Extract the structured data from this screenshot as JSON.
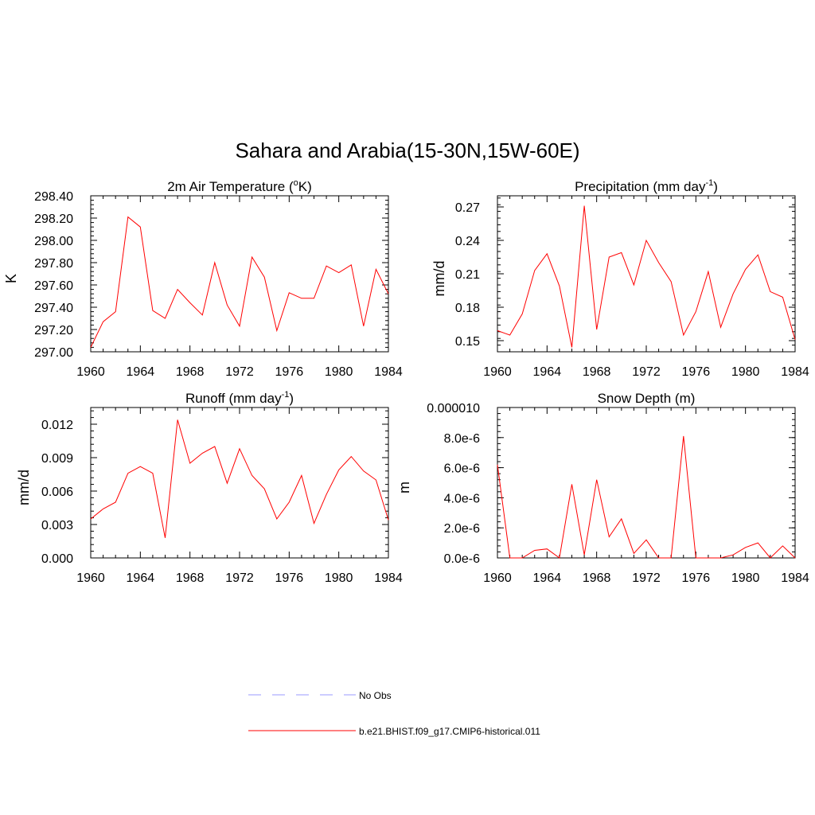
{
  "title": "Sahara and Arabia(15-30N,15W-60E)",
  "chart_data": [
    {
      "type": "line",
      "title": "2m Air Temperature (",
      "title_sup": "o",
      "title_end": "K)",
      "ylabel": "K",
      "xlim": [
        1960,
        1984
      ],
      "ylim": [
        297.0,
        298.4
      ],
      "xticks": [
        "1960",
        "1964",
        "1968",
        "1972",
        "1976",
        "1980",
        "1984"
      ],
      "yticks": [
        "297.00",
        "297.20",
        "297.40",
        "297.60",
        "297.80",
        "298.00",
        "298.20",
        "298.40"
      ],
      "ytick_values": [
        297.0,
        297.2,
        297.4,
        297.6,
        297.8,
        298.0,
        298.2,
        298.4
      ],
      "x": [
        1960,
        1961,
        1962,
        1963,
        1964,
        1965,
        1966,
        1967,
        1968,
        1969,
        1970,
        1971,
        1972,
        1973,
        1974,
        1975,
        1976,
        1977,
        1978,
        1979,
        1980,
        1981,
        1982,
        1983,
        1984
      ],
      "series": [
        {
          "values": [
            297.04,
            297.27,
            297.36,
            298.21,
            298.12,
            297.37,
            297.3,
            297.56,
            297.44,
            297.33,
            297.8,
            297.42,
            297.23,
            297.85,
            297.67,
            297.19,
            297.53,
            297.48,
            297.48,
            297.77,
            297.71,
            297.78,
            297.23,
            297.74,
            297.52
          ],
          "color": "#ff0000"
        }
      ]
    },
    {
      "type": "line",
      "title": "Precipitation (mm day",
      "title_sup": "-1",
      "title_end": ")",
      "ylabel": "mm/d",
      "xlim": [
        1960,
        1984
      ],
      "ylim": [
        0.14,
        0.28
      ],
      "xticks": [
        "1960",
        "1964",
        "1968",
        "1972",
        "1976",
        "1980",
        "1984"
      ],
      "yticks": [
        "0.15",
        "0.18",
        "0.21",
        "0.24",
        "0.27"
      ],
      "ytick_values": [
        0.15,
        0.18,
        0.21,
        0.24,
        0.27
      ],
      "x": [
        1960,
        1961,
        1962,
        1963,
        1964,
        1965,
        1966,
        1967,
        1968,
        1969,
        1970,
        1971,
        1972,
        1973,
        1974,
        1975,
        1976,
        1977,
        1978,
        1979,
        1980,
        1981,
        1982,
        1983,
        1984
      ],
      "series": [
        {
          "values": [
            0.159,
            0.155,
            0.174,
            0.213,
            0.228,
            0.199,
            0.144,
            0.271,
            0.16,
            0.225,
            0.229,
            0.2,
            0.24,
            0.22,
            0.203,
            0.155,
            0.176,
            0.212,
            0.162,
            0.192,
            0.214,
            0.227,
            0.194,
            0.189,
            0.151
          ],
          "color": "#ff0000"
        }
      ]
    },
    {
      "type": "line",
      "title": "Runoff (mm day",
      "title_sup": "-1",
      "title_end": ")",
      "ylabel": "mm/d",
      "xlim": [
        1960,
        1984
      ],
      "ylim": [
        0.0,
        0.0135
      ],
      "xticks": [
        "1960",
        "1964",
        "1968",
        "1972",
        "1976",
        "1980",
        "1984"
      ],
      "yticks": [
        "0.000",
        "0.003",
        "0.006",
        "0.009",
        "0.012"
      ],
      "ytick_values": [
        0.0,
        0.003,
        0.006,
        0.009,
        0.012
      ],
      "x": [
        1960,
        1961,
        1962,
        1963,
        1964,
        1965,
        1966,
        1967,
        1968,
        1969,
        1970,
        1971,
        1972,
        1973,
        1974,
        1975,
        1976,
        1977,
        1978,
        1979,
        1980,
        1981,
        1982,
        1983,
        1984
      ],
      "series": [
        {
          "values": [
            0.0035,
            0.0044,
            0.005,
            0.0076,
            0.0082,
            0.0076,
            0.0018,
            0.0124,
            0.0085,
            0.0094,
            0.01,
            0.0067,
            0.0098,
            0.0074,
            0.0062,
            0.0035,
            0.005,
            0.0074,
            0.0031,
            0.0057,
            0.0079,
            0.0091,
            0.0078,
            0.007,
            0.0034
          ],
          "color": "#ff0000"
        }
      ]
    },
    {
      "type": "line",
      "title": "Snow Depth (m)",
      "title_sup": "",
      "title_end": "",
      "ylabel": "m",
      "xlim": [
        1960,
        1984
      ],
      "ylim": [
        0.0,
        1e-05
      ],
      "xticks": [
        "1960",
        "1964",
        "1968",
        "1972",
        "1976",
        "1980",
        "1984"
      ],
      "yticks": [
        "0.0e-6",
        "2.0e-6",
        "4.0e-6",
        "6.0e-6",
        "8.0e-6",
        "0.000010"
      ],
      "ytick_values": [
        0.0,
        2e-06,
        4e-06,
        6e-06,
        8e-06,
        1e-05
      ],
      "x": [
        1960,
        1961,
        1962,
        1963,
        1964,
        1965,
        1966,
        1967,
        1968,
        1969,
        1970,
        1971,
        1972,
        1973,
        1974,
        1975,
        1976,
        1977,
        1978,
        1979,
        1980,
        1981,
        1982,
        1983,
        1984
      ],
      "series": [
        {
          "values": [
            6.2e-06,
            0.0,
            0.0,
            5e-07,
            6e-07,
            0.0,
            4.9e-06,
            2e-07,
            5.2e-06,
            1.4e-06,
            2.6e-06,
            3e-07,
            1.2e-06,
            0.0,
            0.0,
            8.1e-06,
            0.0,
            0.0,
            0.0,
            2e-07,
            7e-07,
            1e-06,
            0.0,
            8e-07,
            0.0
          ],
          "color": "#ff0000"
        }
      ]
    }
  ],
  "legend": [
    {
      "label": "No Obs",
      "color": "#9999ff",
      "dashed": true
    },
    {
      "label": "b.e21.BHIST.f09_g17.CMIP6-historical.011",
      "color": "#ff0000",
      "dashed": false
    }
  ]
}
